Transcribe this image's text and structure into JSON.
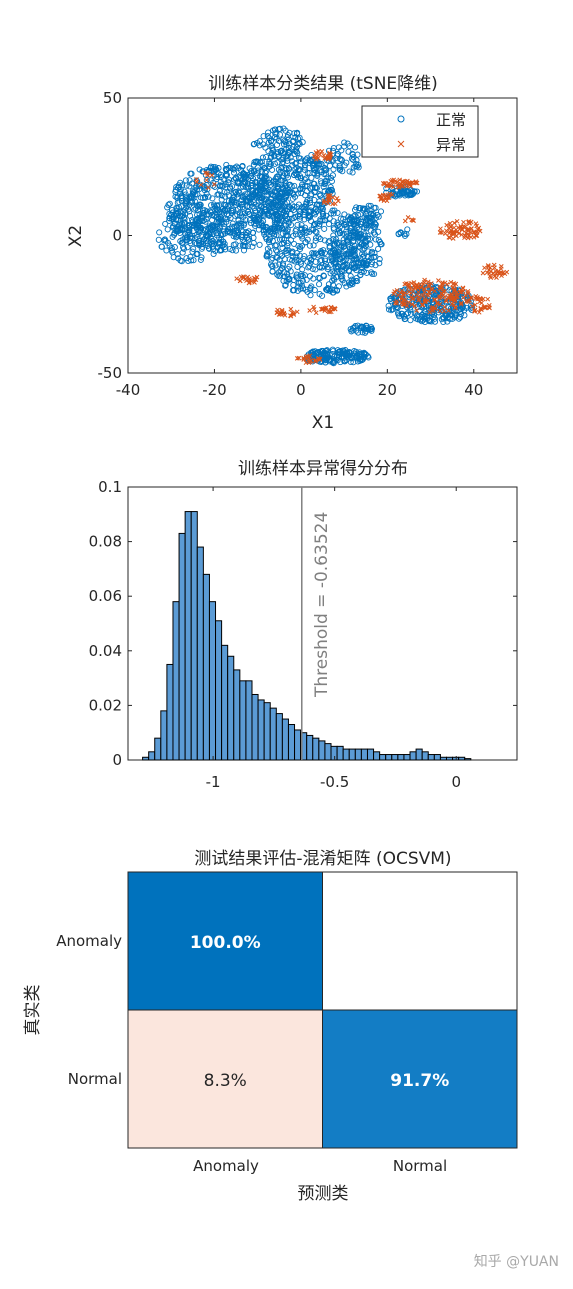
{
  "chart_data": [
    {
      "type": "scatter",
      "title": "训练样本分类结果 (tSNE降维)",
      "xlabel": "X1",
      "ylabel": "X2",
      "xlim": [
        -40,
        50
      ],
      "ylim": [
        -50,
        50
      ],
      "xticks": [
        "-40",
        "-20",
        "0",
        "20",
        "40"
      ],
      "yticks": [
        "-50",
        "0",
        "50"
      ],
      "legend_position": "top-right",
      "series": [
        {
          "name": "正常",
          "marker": "circle",
          "color": "#0072BD",
          "clusters": [
            {
              "cx": -17,
              "cy": 10,
              "rx": 14,
              "ry": 16,
              "n": 650
            },
            {
              "cx": -3,
              "cy": 18,
              "rx": 11,
              "ry": 13,
              "n": 380
            },
            {
              "cx": 4,
              "cy": -6,
              "rx": 12,
              "ry": 16,
              "n": 420
            },
            {
              "cx": 13,
              "cy": -5,
              "rx": 6,
              "ry": 12,
              "n": 140
            },
            {
              "cx": -25,
              "cy": 0,
              "rx": 8,
              "ry": 10,
              "n": 120
            },
            {
              "cx": -5,
              "cy": 34,
              "rx": 6,
              "ry": 5,
              "n": 70
            },
            {
              "cx": 10,
              "cy": 28,
              "rx": 4,
              "ry": 6,
              "n": 50
            },
            {
              "cx": 8,
              "cy": -44,
              "rx": 8,
              "ry": 2.5,
              "n": 160
            },
            {
              "cx": 14,
              "cy": -34,
              "rx": 3,
              "ry": 1.5,
              "n": 30
            },
            {
              "cx": 15,
              "cy": 7,
              "rx": 4,
              "ry": 4,
              "n": 50
            },
            {
              "cx": 23,
              "cy": 16,
              "rx": 4,
              "ry": 2,
              "n": 50
            },
            {
              "cx": 30,
              "cy": -25,
              "rx": 10,
              "ry": 7,
              "n": 300
            },
            {
              "cx": 24,
              "cy": 1,
              "rx": 1.5,
              "ry": 1.5,
              "n": 8
            }
          ]
        },
        {
          "name": "异常",
          "marker": "x",
          "color": "#D95319",
          "clusters": [
            {
              "cx": 5,
              "cy": 29,
              "rx": 2,
              "ry": 2,
              "n": 25
            },
            {
              "cx": 7,
              "cy": 13,
              "rx": 2,
              "ry": 2,
              "n": 15
            },
            {
              "cx": -12,
              "cy": -16,
              "rx": 3,
              "ry": 1.5,
              "n": 20
            },
            {
              "cx": -3,
              "cy": -28,
              "rx": 3,
              "ry": 1.5,
              "n": 20
            },
            {
              "cx": 5,
              "cy": -27,
              "rx": 3,
              "ry": 1.5,
              "n": 20
            },
            {
              "cx": 2,
              "cy": -45,
              "rx": 3,
              "ry": 1.5,
              "n": 20
            },
            {
              "cx": 23,
              "cy": 19,
              "rx": 4,
              "ry": 1.5,
              "n": 40
            },
            {
              "cx": 20,
              "cy": 14,
              "rx": 2,
              "ry": 1.5,
              "n": 15
            },
            {
              "cx": 37,
              "cy": 2,
              "rx": 5,
              "ry": 3.5,
              "n": 70
            },
            {
              "cx": 45,
              "cy": -13,
              "rx": 3,
              "ry": 2.5,
              "n": 30
            },
            {
              "cx": 30,
              "cy": -22,
              "rx": 9,
              "ry": 6,
              "n": 160
            },
            {
              "cx": 41,
              "cy": -25,
              "rx": 3,
              "ry": 3,
              "n": 30
            },
            {
              "cx": -22,
              "cy": 20,
              "rx": 3,
              "ry": 3,
              "n": 10
            },
            {
              "cx": 25,
              "cy": 6,
              "rx": 1.5,
              "ry": 1.5,
              "n": 5
            }
          ]
        }
      ]
    },
    {
      "type": "bar",
      "title": "训练样本异常得分分布",
      "xlim": [
        -1.35,
        0.25
      ],
      "ylim": [
        0,
        0.1
      ],
      "xticks": [
        "-1",
        "-0.5",
        "0"
      ],
      "yticks": [
        "0",
        "0.02",
        "0.04",
        "0.06",
        "0.08",
        "0.1"
      ],
      "bin_start": -1.29,
      "bin_width": 0.025,
      "values": [
        0.001,
        0.003,
        0.008,
        0.018,
        0.035,
        0.058,
        0.083,
        0.091,
        0.091,
        0.078,
        0.068,
        0.058,
        0.051,
        0.042,
        0.038,
        0.033,
        0.029,
        0.029,
        0.024,
        0.022,
        0.021,
        0.019,
        0.017,
        0.015,
        0.013,
        0.011,
        0.01,
        0.009,
        0.008,
        0.007,
        0.006,
        0.005,
        0.005,
        0.004,
        0.004,
        0.004,
        0.004,
        0.004,
        0.003,
        0.002,
        0.002,
        0.002,
        0.002,
        0.002,
        0.003,
        0.004,
        0.003,
        0.002,
        0.002,
        0.001,
        0.001,
        0.001,
        0.001,
        0.0005
      ],
      "threshold_value": -0.63524,
      "threshold_label": "Threshold = -0.63524",
      "bar_color": "#5B9BD5"
    },
    {
      "type": "heatmap",
      "title": "测试结果评估-混淆矩阵 (OCSVM)",
      "xlabel": "预测类",
      "ylabel": "真实类",
      "x_categories": [
        "Anomaly",
        "Normal"
      ],
      "y_categories": [
        "Anomaly",
        "Normal"
      ],
      "cells": [
        {
          "row": 0,
          "col": 0,
          "value": 100.0,
          "label": "100.0%",
          "color": "#0072BD",
          "text_color": "#ffffff"
        },
        {
          "row": 0,
          "col": 1,
          "value": 0,
          "label": "",
          "color": "#ffffff",
          "text_color": "#262626"
        },
        {
          "row": 1,
          "col": 0,
          "value": 8.3,
          "label": "8.3%",
          "color": "#FBE6DD",
          "text_color": "#262626"
        },
        {
          "row": 1,
          "col": 1,
          "value": 91.7,
          "label": "91.7%",
          "color": "#137DC5",
          "text_color": "#ffffff"
        }
      ]
    }
  ],
  "watermark": "知乎 @YUAN"
}
